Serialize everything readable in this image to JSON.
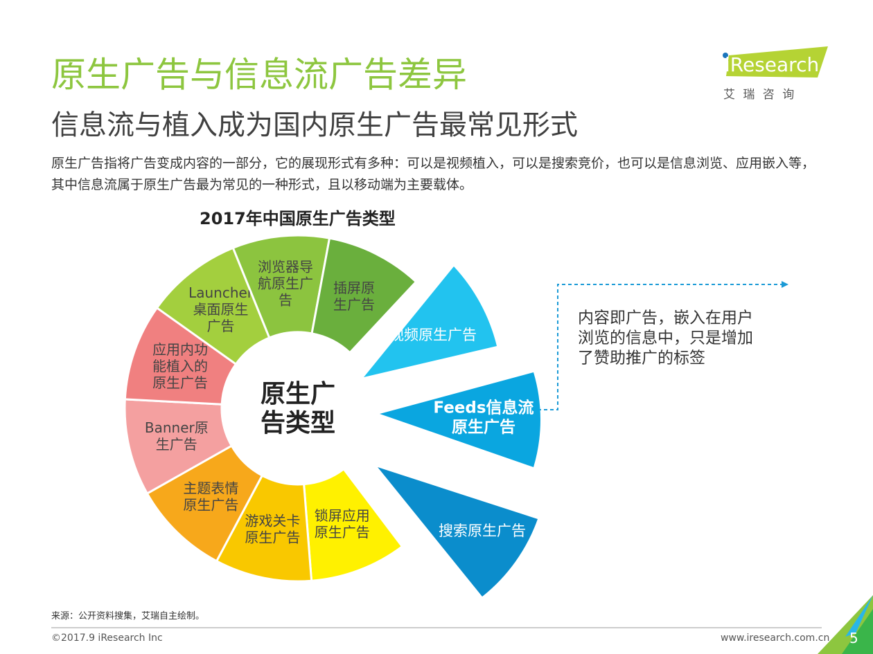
{
  "header": {
    "title": "原生广告与信息流广告差异",
    "subtitle": "信息流与植入成为国内原生广告最常见形式",
    "description": "原生广告指将广告变成内容的一部分，它的展现形式有多种：可以是视频植入，可以是搜索竞价，也可以是信息浏览、应用嵌入等，其中信息流属于原生广告最为常见的一种形式，且以移动端为主要载体。"
  },
  "logo": {
    "brand": "iResearch",
    "tagline": "艾 瑞 咨 询"
  },
  "diagram": {
    "title": "2017年中国原生广告类型",
    "center": [
      "原生广",
      "告类型"
    ],
    "segments": [
      [
        "锁屏应用",
        "原生广告"
      ],
      [
        "游戏关卡",
        "原生广告"
      ],
      [
        "主题表情",
        "原生广告"
      ],
      [
        "Banner原",
        "生广告"
      ],
      [
        "应用内功",
        "能植入的",
        "原生广告"
      ],
      [
        "Launcher",
        "桌面原生",
        "广告"
      ],
      [
        "浏览器导",
        "航原生广",
        "告"
      ],
      [
        "插屏原",
        "生广告"
      ]
    ],
    "highlights": [
      [
        "视频原生广告"
      ],
      [
        "Feeds信息流",
        "原生广告"
      ],
      [
        "搜索原生广告"
      ]
    ],
    "callout": [
      "内容即广告，嵌入在用户",
      "浏览的信息中，只是增加",
      "了赞助推广的标签"
    ]
  },
  "footer": {
    "source": "来源：公开资料搜集，艾瑞自主绘制。",
    "copyright": "©2017.9 iResearch Inc",
    "url": "www.iresearch.com.cn",
    "page": "5"
  }
}
